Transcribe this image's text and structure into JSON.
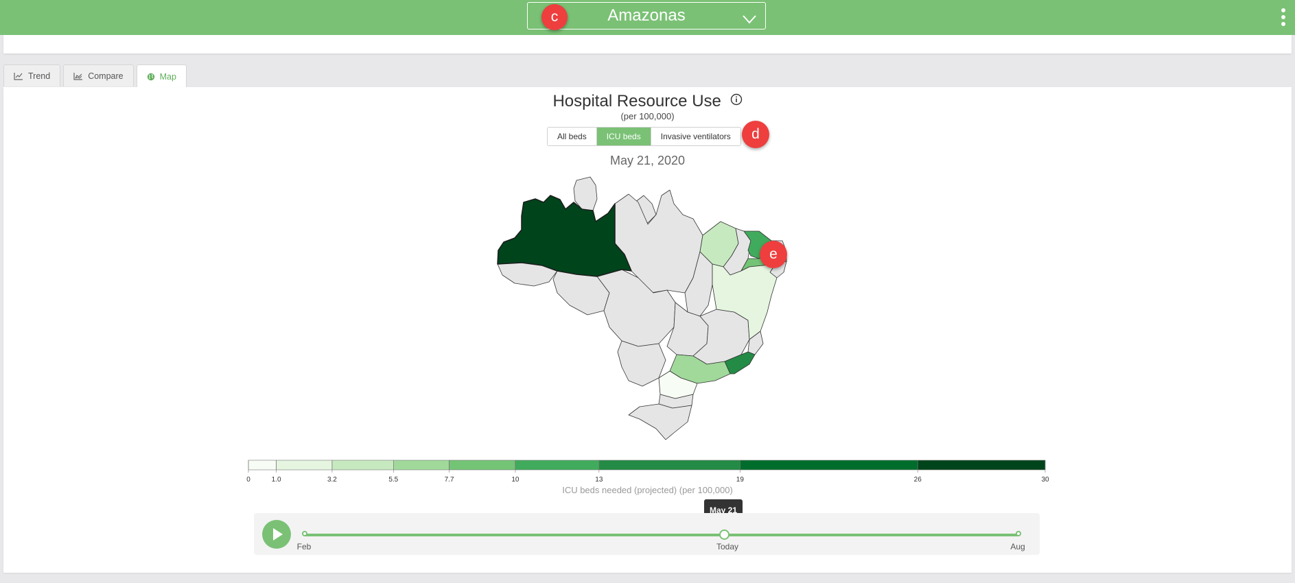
{
  "header": {
    "region": "Amazonas",
    "badge_c": "c",
    "chevron_icon": "chevron-down-icon",
    "menu_icon": "more-vertical-icon"
  },
  "tabs": [
    {
      "label": "Trend",
      "icon": "line-chart-icon",
      "active": false
    },
    {
      "label": "Compare",
      "icon": "area-chart-icon",
      "active": false
    },
    {
      "label": "Map",
      "icon": "globe-icon",
      "active": true
    }
  ],
  "panel": {
    "title": "Hospital Resource Use",
    "subtitle": "(per 100,000)",
    "info_icon": "info-icon",
    "resource_options": [
      "All beds",
      "ICU beds",
      "Invasive ventilators"
    ],
    "selected_option": "ICU beds",
    "badge_d": "d",
    "date": "May 21, 2020",
    "badge_e": "e"
  },
  "map": {
    "highlighted_state": "Amazonas",
    "colors": {
      "no_data": "#e5e5e6",
      "amazonas": "#00441b",
      "accent": "#7ac175"
    }
  },
  "legend": {
    "title": "ICU beds needed (projected) (per 100,000)",
    "breaks": [
      "0",
      "1.0",
      "3.2",
      "5.5",
      "7.7",
      "10",
      "13",
      "19",
      "26",
      "30"
    ],
    "values": [
      0,
      1.0,
      3.2,
      5.5,
      7.7,
      10,
      13,
      19,
      26,
      30
    ],
    "colors": [
      "#f7fcf5",
      "#e5f5e0",
      "#c7e9c0",
      "#a1d99b",
      "#74c476",
      "#41ab5d",
      "#238b45",
      "#006d2c",
      "#00441b"
    ]
  },
  "timeline": {
    "start_label": "Feb",
    "current_label": "Today",
    "end_label": "Aug",
    "tooltip": "May 21",
    "position_fraction": 0.59,
    "play_icon": "play-icon"
  }
}
